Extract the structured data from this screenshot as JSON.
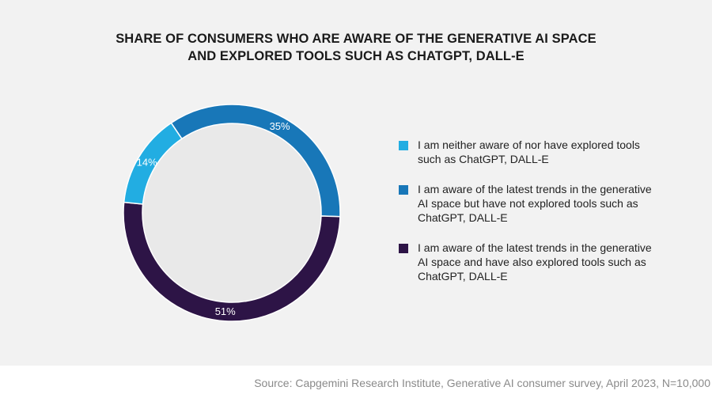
{
  "title_lines": [
    "SHARE OF CONSUMERS WHO ARE AWARE OF THE GENERATIVE AI SPACE",
    "AND EXPLORED TOOLS SUCH AS CHATGPT, DALL-E"
  ],
  "source": "Source: Capgemini Research Institute, Generative AI consumer survey, April 2023, N=10,000",
  "chart_data": {
    "type": "pie",
    "variant": "donut",
    "title": "SHARE OF CONSUMERS WHO ARE AWARE OF THE GENERATIVE AI SPACE AND EXPLORED TOOLS SUCH AS CHATGPT, DALL-E",
    "start_angle_deg": -34,
    "legend_position": "right",
    "slices": [
      {
        "label": "I am aware of the latest trends in the generative AI space but have not explored tools such as ChatGPT, DALL-E",
        "value": 35,
        "display": "35%",
        "color": "#1877b8"
      },
      {
        "label": "I am aware of the latest trends in the generative AI space and have also explored tools such as ChatGPT, DALL-E",
        "value": 51,
        "display": "51%",
        "color": "#2d1446"
      },
      {
        "label": "I am neither aware of nor have explored tools such as ChatGPT, DALL-E",
        "value": 14,
        "display": "14%",
        "color": "#22ade2"
      }
    ]
  },
  "legend": [
    {
      "text": "I am neither aware of nor have explored tools such as ChatGPT, DALL-E",
      "color": "#22ade2"
    },
    {
      "text": "I am aware of the latest trends in the generative AI space but have not explored tools such as ChatGPT, DALL-E",
      "color": "#1877b8"
    },
    {
      "text": "I am aware of the latest trends in the generative AI space and have also explored tools such as ChatGPT, DALL-E",
      "color": "#2d1446"
    }
  ]
}
